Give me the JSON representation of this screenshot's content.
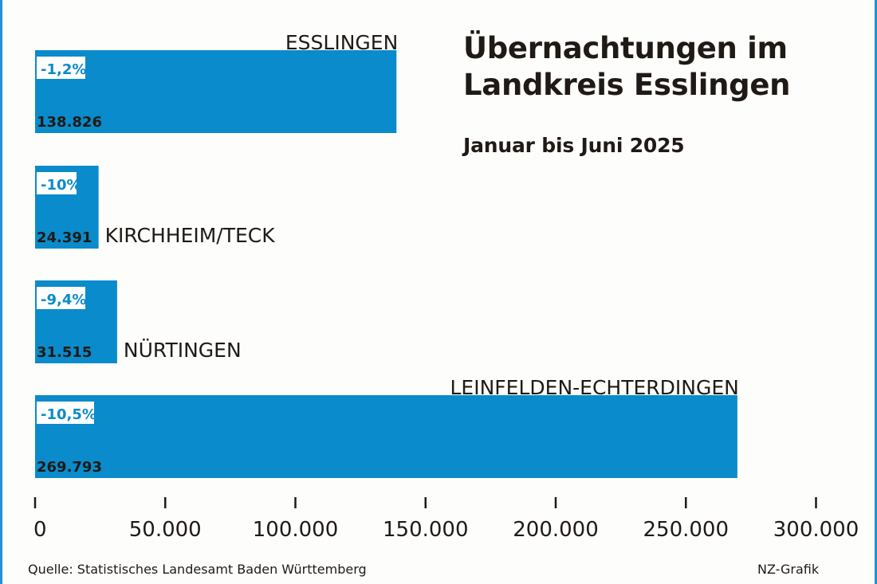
{
  "chart_data": {
    "type": "bar",
    "orientation": "horizontal",
    "title": "Übernachtungen im Landkreis Esslingen",
    "subtitle": "Januar bis Juni 2025",
    "categories": [
      "ESSLINGEN",
      "KIRCHHEIM/TECK",
      "NÜRTINGEN",
      "LEINFELDEN-ECHTERDINGEN"
    ],
    "values": [
      138826,
      24391,
      31515,
      269793
    ],
    "value_labels": [
      "138.826",
      "24.391",
      "31.515",
      "269.793"
    ],
    "change_labels": [
      "-1,2%",
      "-10%",
      "-9,4%",
      "-10,5%"
    ],
    "xlim": [
      0,
      300000
    ],
    "x_ticks": [
      0,
      50000,
      100000,
      150000,
      200000,
      250000,
      300000
    ],
    "x_tick_labels": [
      "0",
      "50.000",
      "100.000",
      "150.000",
      "200.000",
      "250.000",
      "300.000"
    ],
    "grid": false,
    "bar_color": "#0a8bcb",
    "text_color": "#1f1a16"
  },
  "footer": {
    "source": "Quelle: Statistisches Landesamt Baden Württemberg",
    "credit": "NZ-Grafik"
  }
}
